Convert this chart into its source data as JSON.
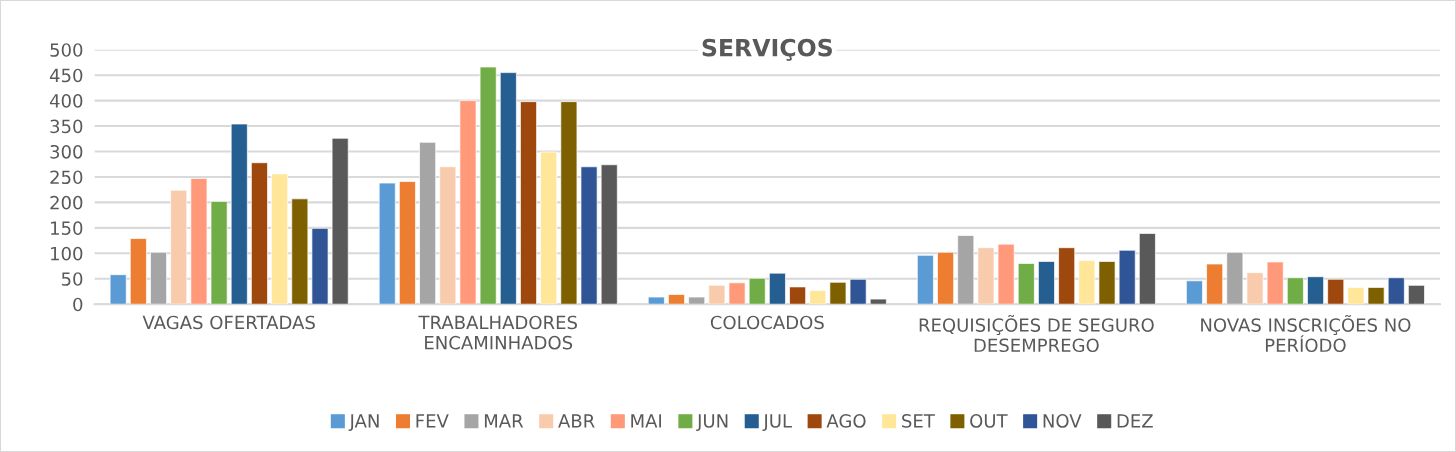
{
  "chart_data": {
    "type": "bar",
    "title": "SERVIÇOS",
    "categories": [
      "VAGAS OFERTADAS",
      "TRABALHADORES ENCAMINHADOS",
      "COLOCADOS",
      "REQUISIÇÕES DE SEGURO DESEMPREGO",
      "NOVAS INSCRIÇÕES NO PERÍODO"
    ],
    "series": [
      {
        "name": "JAN",
        "color": "#5b9bd5",
        "values": [
          58,
          238,
          14,
          96,
          46
        ]
      },
      {
        "name": "FEV",
        "color": "#ed7d31",
        "values": [
          129,
          241,
          19,
          102,
          79
        ]
      },
      {
        "name": "MAR",
        "color": "#a5a5a5",
        "values": [
          102,
          318,
          14,
          135,
          102
        ]
      },
      {
        "name": "ABR",
        "color": "#f8cbad",
        "values": [
          224,
          270,
          37,
          111,
          62
        ]
      },
      {
        "name": "MAI",
        "color": "#ff997a",
        "values": [
          247,
          400,
          42,
          118,
          83
        ]
      },
      {
        "name": "JUN",
        "color": "#70ad47",
        "values": [
          202,
          466,
          51,
          80,
          52
        ]
      },
      {
        "name": "JUL",
        "color": "#255e91",
        "values": [
          354,
          455,
          61,
          84,
          54
        ]
      },
      {
        "name": "AGO",
        "color": "#9e480e",
        "values": [
          278,
          398,
          34,
          111,
          49
        ]
      },
      {
        "name": "SET",
        "color": "#ffe699",
        "values": [
          256,
          299,
          27,
          86,
          33
        ]
      },
      {
        "name": "OUT",
        "color": "#7f6000",
        "values": [
          207,
          398,
          43,
          84,
          33
        ]
      },
      {
        "name": "NOV",
        "color": "#2f5597",
        "values": [
          149,
          270,
          49,
          106,
          52
        ]
      },
      {
        "name": "DEZ",
        "color": "#595959",
        "values": [
          326,
          274,
          10,
          139,
          37
        ]
      }
    ],
    "ylim": [
      0,
      500
    ],
    "yticks": [
      0,
      50,
      100,
      150,
      200,
      250,
      300,
      350,
      400,
      450,
      500
    ],
    "grid": "y",
    "legend": "bottom"
  }
}
